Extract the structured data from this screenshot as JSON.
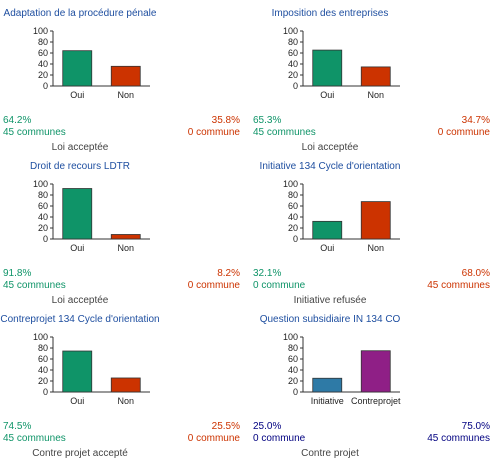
{
  "colors": {
    "green": "#0f9468",
    "red": "#cc3300",
    "blue": "#2e7aa6",
    "purple": "#8f1f86",
    "navy": "#000080",
    "title": "#1f4fa0"
  },
  "chart_data": [
    {
      "type": "bar",
      "title": "Adaptation de la procédure pénale",
      "categories": [
        "Oui",
        "Non"
      ],
      "values": [
        64.2,
        35.8
      ],
      "bar_colors": [
        "green",
        "red"
      ],
      "ylim": [
        0,
        100
      ],
      "yticks": [
        "100",
        "80",
        "60",
        "40",
        "20",
        "0"
      ],
      "stats": [
        {
          "pct": "64.2%",
          "communes": "45 communes",
          "color": "green"
        },
        {
          "pct": "35.8%",
          "communes": "0 commune",
          "color": "red"
        }
      ],
      "result": "Loi acceptée"
    },
    {
      "type": "bar",
      "title": "Imposition des entreprises",
      "categories": [
        "Oui",
        "Non"
      ],
      "values": [
        65.3,
        34.7
      ],
      "bar_colors": [
        "green",
        "red"
      ],
      "ylim": [
        0,
        100
      ],
      "yticks": [
        "100",
        "80",
        "60",
        "40",
        "20",
        "0"
      ],
      "stats": [
        {
          "pct": "65.3%",
          "communes": "45 communes",
          "color": "green"
        },
        {
          "pct": "34.7%",
          "communes": "0 commune",
          "color": "red"
        }
      ],
      "result": "Loi acceptée"
    },
    {
      "type": "bar",
      "title": "Droit de recours LDTR",
      "categories": [
        "Oui",
        "Non"
      ],
      "values": [
        91.8,
        8.2
      ],
      "bar_colors": [
        "green",
        "red"
      ],
      "ylim": [
        0,
        100
      ],
      "yticks": [
        "100",
        "80",
        "60",
        "40",
        "20",
        "0"
      ],
      "stats": [
        {
          "pct": "91.8%",
          "communes": "45 communes",
          "color": "green"
        },
        {
          "pct": "8.2%",
          "communes": "0 commune",
          "color": "red"
        }
      ],
      "result": "Loi acceptée"
    },
    {
      "type": "bar",
      "title": "Initiative 134 Cycle d'orientation",
      "categories": [
        "Oui",
        "Non"
      ],
      "values": [
        32.1,
        68.0
      ],
      "bar_colors": [
        "green",
        "red"
      ],
      "ylim": [
        0,
        100
      ],
      "yticks": [
        "100",
        "80",
        "60",
        "40",
        "20",
        "0"
      ],
      "stats": [
        {
          "pct": "32.1%",
          "communes": "0 commune",
          "color": "green"
        },
        {
          "pct": "68.0%",
          "communes": "45 communes",
          "color": "red"
        }
      ],
      "result": "Initiative refusée"
    },
    {
      "type": "bar",
      "title": "Contreprojet 134 Cycle d'orientation",
      "categories": [
        "Oui",
        "Non"
      ],
      "values": [
        74.5,
        25.5
      ],
      "bar_colors": [
        "green",
        "red"
      ],
      "ylim": [
        0,
        100
      ],
      "yticks": [
        "100",
        "80",
        "60",
        "40",
        "20",
        "0"
      ],
      "stats": [
        {
          "pct": "74.5%",
          "communes": "45 communes",
          "color": "green"
        },
        {
          "pct": "25.5%",
          "communes": "0 commune",
          "color": "red"
        }
      ],
      "result": "Contre projet accepté"
    },
    {
      "type": "bar",
      "title": "Question subsidiaire IN 134 CO",
      "categories": [
        "Initiative",
        "Contreprojet"
      ],
      "values": [
        25.0,
        75.0
      ],
      "bar_colors": [
        "blue",
        "purple"
      ],
      "ylim": [
        0,
        100
      ],
      "yticks": [
        "100",
        "80",
        "60",
        "40",
        "20",
        "0"
      ],
      "stats": [
        {
          "pct": "25.0%",
          "communes": "0 commune",
          "color": "navy"
        },
        {
          "pct": "75.0%",
          "communes": "45 communes",
          "color": "navy"
        }
      ],
      "result": "Contre projet"
    }
  ]
}
